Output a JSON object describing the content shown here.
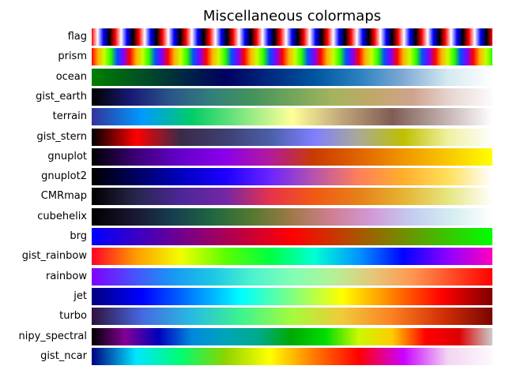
{
  "chart_data": {
    "type": "heatmap",
    "title": "Miscellaneous colormaps",
    "rows": [
      {
        "name": "flag",
        "stops": [
          "#ff0000",
          "#ffffff",
          "#0000ff",
          "#000000",
          "#ff0000",
          "#ffffff",
          "#0000ff",
          "#000000",
          "#ff0000",
          "#ffffff",
          "#0000ff",
          "#000000",
          "#ff0000",
          "#ffffff",
          "#0000ff",
          "#000000",
          "#ff0000",
          "#ffffff",
          "#0000ff",
          "#000000",
          "#ff0000",
          "#ffffff",
          "#0000ff",
          "#000000",
          "#ff0000",
          "#ffffff",
          "#0000ff",
          "#000000",
          "#ff0000",
          "#ffffff",
          "#0000ff",
          "#000000",
          "#ff0000",
          "#ffffff",
          "#0000ff",
          "#000000",
          "#ff0000",
          "#ffffff",
          "#0000ff",
          "#000000",
          "#ff0000",
          "#ffffff",
          "#0000ff",
          "#000000",
          "#ff0000",
          "#ffffff",
          "#0000ff",
          "#000000",
          "#ff0000",
          "#ffffff",
          "#0000ff",
          "#000000",
          "#ff0000",
          "#ffffff",
          "#0000ff",
          "#000000",
          "#ff0000",
          "#ffffff",
          "#0000ff",
          "#000000",
          "#ff0000",
          "#ffffff",
          "#0000ff",
          "#000000",
          "#ff0000",
          "#ffffff",
          "#0000ff",
          "#000000",
          "#ff0000"
        ]
      },
      {
        "name": "prism",
        "stops": [
          "#ff0000",
          "#ffb000",
          "#c8ff00",
          "#28ff00",
          "#0050ff",
          "#8000ff",
          "#ff0000",
          "#ffb000",
          "#c8ff00",
          "#28ff00",
          "#0050ff",
          "#8000ff",
          "#ff0000",
          "#ffb000",
          "#c8ff00",
          "#28ff00",
          "#0050ff",
          "#8000ff",
          "#ff0000",
          "#ffb000",
          "#c8ff00",
          "#28ff00",
          "#0050ff",
          "#8000ff",
          "#ff0000",
          "#ffb000",
          "#c8ff00",
          "#28ff00",
          "#0050ff",
          "#8000ff",
          "#ff0000",
          "#ffb000",
          "#c8ff00",
          "#28ff00",
          "#0050ff",
          "#8000ff",
          "#ff0000",
          "#ffb000",
          "#c8ff00",
          "#28ff00",
          "#0050ff",
          "#8000ff",
          "#ff0000",
          "#ffb000",
          "#c8ff00",
          "#28ff00",
          "#0050ff",
          "#8000ff",
          "#ff0000",
          "#ffb000",
          "#c8ff00",
          "#28ff00",
          "#0050ff",
          "#8000ff",
          "#ff0000",
          "#ffb000",
          "#c8ff00",
          "#28ff00",
          "#0050ff",
          "#8000ff",
          "#ff0000",
          "#ffb000",
          "#c8ff00",
          "#28ff00"
        ]
      },
      {
        "name": "ocean",
        "stops": [
          "#008000",
          "#005520",
          "#002a40",
          "#000060",
          "#002a80",
          "#0055a0",
          "#2a80bf",
          "#80aad5",
          "#d5eaf0",
          "#ffffff"
        ]
      },
      {
        "name": "gist_earth",
        "stops": [
          "#000000",
          "#1a1a78",
          "#29588a",
          "#337f7a",
          "#43935c",
          "#72a55a",
          "#a4b35e",
          "#c0a868",
          "#cfa38e",
          "#e8d8d4",
          "#fdfbfb"
        ]
      },
      {
        "name": "terrain",
        "stops": [
          "#333399",
          "#0099ff",
          "#00cc66",
          "#80e680",
          "#ffff99",
          "#bfa57a",
          "#805c54",
          "#bfadaa",
          "#ffffff"
        ]
      },
      {
        "name": "gist_stern",
        "stops": [
          "#000000",
          "#ff0000",
          "#3a2a4a",
          "#3f3f70",
          "#4a5fa8",
          "#7f7fff",
          "#aaaa96",
          "#bfbf00",
          "#f0f0a0",
          "#ffffff"
        ]
      },
      {
        "name": "gnuplot",
        "stops": [
          "#000000",
          "#3c0077",
          "#6400cc",
          "#8b00ea",
          "#b41a9c",
          "#c93c00",
          "#e06400",
          "#f09600",
          "#f8c800",
          "#ffff00"
        ]
      },
      {
        "name": "gnuplot2",
        "stops": [
          "#000000",
          "#000060",
          "#0000c0",
          "#1c00ff",
          "#6a24ff",
          "#b854ab",
          "#ff7f5a",
          "#ffaf2a",
          "#ffdf5a",
          "#ffffff"
        ]
      },
      {
        "name": "CMRmap",
        "stops": [
          "#000000",
          "#26264d",
          "#4c2699",
          "#7326a6",
          "#e6324d",
          "#f25913",
          "#e6801a",
          "#e6b333",
          "#e6e680",
          "#ffffff"
        ]
      },
      {
        "name": "cubehelix",
        "stops": [
          "#000000",
          "#1a1530",
          "#163d4e",
          "#1f6642",
          "#54792f",
          "#a07949",
          "#d07e93",
          "#d29ad9",
          "#c3cdf0",
          "#d4eef0",
          "#ffffff"
        ]
      },
      {
        "name": "brg",
        "stops": [
          "#0000ff",
          "#7f0080",
          "#ff0000",
          "#7f8000",
          "#00ff00"
        ]
      },
      {
        "name": "gist_rainbow",
        "stops": [
          "#ff0029",
          "#ff9c00",
          "#f2ff00",
          "#5cff00",
          "#00ff41",
          "#00ffd5",
          "#0094ff",
          "#0004ff",
          "#8f00ff",
          "#ff00bf"
        ]
      },
      {
        "name": "rainbow",
        "stops": [
          "#8000ff",
          "#4c4cfc",
          "#1996f3",
          "#1ac7e6",
          "#4cf2ce",
          "#80ffb4",
          "#b2f296",
          "#e6c77a",
          "#ff9650",
          "#ff4c27",
          "#ff0000"
        ]
      },
      {
        "name": "jet",
        "stops": [
          "#000080",
          "#0000ff",
          "#0080ff",
          "#00ffff",
          "#80ff80",
          "#ffff00",
          "#ff8000",
          "#ff0000",
          "#800000"
        ]
      },
      {
        "name": "turbo",
        "stops": [
          "#30123b",
          "#4668e1",
          "#26bce1",
          "#3df58e",
          "#a4fc3c",
          "#f1ca3a",
          "#fb8022",
          "#d23105",
          "#7a0403"
        ]
      },
      {
        "name": "nipy_spectral",
        "stops": [
          "#000000",
          "#840096",
          "#0000bb",
          "#0089dd",
          "#00a4bb",
          "#00aa89",
          "#00aa00",
          "#00dd00",
          "#ccf800",
          "#ffcc00",
          "#ff0000",
          "#dd0000",
          "#cccccc"
        ]
      },
      {
        "name": "gist_ncar",
        "stops": [
          "#000080",
          "#00e6ff",
          "#00fc72",
          "#8cd400",
          "#ffff00",
          "#ff7a00",
          "#ff0000",
          "#cb00ff",
          "#f2d6f2",
          "#fef8fe"
        ]
      }
    ]
  }
}
